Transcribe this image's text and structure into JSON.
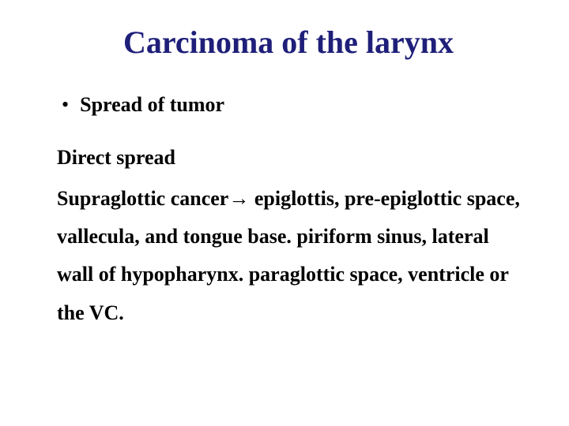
{
  "title_color": "#1f1f7a",
  "body_color": "#000000",
  "background_color": "#ffffff",
  "font_family": "Times New Roman",
  "title_fontsize": 40,
  "body_fontsize": 26,
  "title": "Carcinoma of the larynx",
  "bullet": "Spread of tumor",
  "subhead": "Direct spread",
  "body": "Supraglottic cancer→ epiglottis, pre-epiglottic space, vallecula, and tongue base.  piriform sinus, lateral wall of hypopharynx. paraglottic space, ventricle or the VC."
}
